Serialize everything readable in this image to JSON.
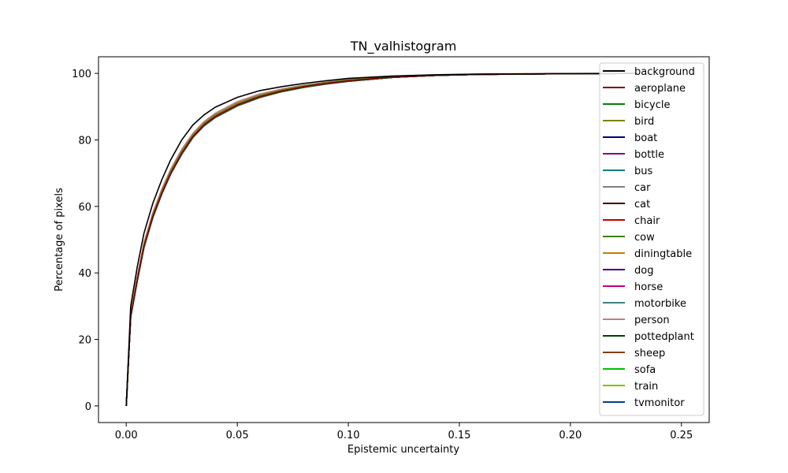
{
  "chart_data": {
    "type": "line",
    "title": "TN_valhistogram",
    "xlabel": "Epistemic uncertainty",
    "ylabel": "Percentage of pixels",
    "xlim": [
      -0.0125,
      0.2625
    ],
    "ylim": [
      -5,
      105
    ],
    "xticks": [
      0.0,
      0.05,
      0.1,
      0.15,
      0.2,
      0.25
    ],
    "xtick_labels": [
      "0.00",
      "0.05",
      "0.10",
      "0.15",
      "0.20",
      "0.25"
    ],
    "yticks": [
      0,
      20,
      40,
      60,
      80,
      100
    ],
    "ytick_labels": [
      "0",
      "20",
      "40",
      "60",
      "80",
      "100"
    ],
    "legend_position": "top-right",
    "x": [
      0.0,
      0.002,
      0.005,
      0.008,
      0.012,
      0.016,
      0.02,
      0.025,
      0.03,
      0.035,
      0.04,
      0.05,
      0.06,
      0.07,
      0.08,
      0.09,
      0.1,
      0.12,
      0.14,
      0.16,
      0.2,
      0.23
    ],
    "series": [
      {
        "name": "background",
        "color": "#000000",
        "values": [
          0,
          30,
          42,
          52,
          61,
          68,
          74,
          80,
          84.5,
          87.5,
          89.8,
          92.8,
          94.8,
          96.0,
          97.0,
          97.8,
          98.5,
          99.2,
          99.6,
          99.8,
          99.95,
          100
        ]
      },
      {
        "name": "aeroplane",
        "color": "#800000",
        "values": [
          0,
          27,
          38,
          48,
          57,
          64,
          70,
          76,
          81,
          84.5,
          87,
          90.5,
          93.0,
          94.7,
          96.0,
          97.0,
          97.8,
          98.9,
          99.4,
          99.7,
          99.9,
          100
        ]
      },
      {
        "name": "bicycle",
        "color": "#008000",
        "values": [
          0,
          26.8,
          37.8,
          47.8,
          56.8,
          63.8,
          69.8,
          75.8,
          80.8,
          84.3,
          86.8,
          90.3,
          92.8,
          94.5,
          95.8,
          96.9,
          97.7,
          98.8,
          99.4,
          99.7,
          99.9,
          100
        ]
      },
      {
        "name": "bird",
        "color": "#808000",
        "values": [
          0,
          27.2,
          38.4,
          48.4,
          57.4,
          64.4,
          70.4,
          76.4,
          81.4,
          84.9,
          87.4,
          90.9,
          93.3,
          95.0,
          96.2,
          97.2,
          98.0,
          99.0,
          99.5,
          99.7,
          99.9,
          100
        ]
      },
      {
        "name": "boat",
        "color": "#000080",
        "values": [
          0,
          26.9,
          37.9,
          47.9,
          56.9,
          63.9,
          69.9,
          75.9,
          80.9,
          84.4,
          86.9,
          90.4,
          92.9,
          94.6,
          95.9,
          96.9,
          97.7,
          98.8,
          99.4,
          99.7,
          99.9,
          100
        ]
      },
      {
        "name": "bottle",
        "color": "#800080",
        "values": [
          0,
          26.7,
          37.7,
          47.7,
          56.7,
          63.7,
          69.7,
          75.7,
          80.7,
          84.2,
          86.7,
          90.2,
          92.7,
          94.5,
          95.8,
          96.8,
          97.6,
          98.8,
          99.4,
          99.7,
          99.9,
          100
        ]
      },
      {
        "name": "bus",
        "color": "#008080",
        "values": [
          0,
          26.9,
          37.9,
          47.9,
          56.9,
          63.9,
          69.9,
          75.9,
          80.9,
          84.4,
          86.9,
          90.4,
          92.9,
          94.6,
          95.9,
          96.9,
          97.7,
          98.8,
          99.4,
          99.7,
          99.9,
          100
        ]
      },
      {
        "name": "car",
        "color": "#808080",
        "values": [
          0,
          27.5,
          38.8,
          48.8,
          57.8,
          64.8,
          70.8,
          76.8,
          81.6,
          85.1,
          87.6,
          91.1,
          93.5,
          95.1,
          96.3,
          97.3,
          98.1,
          99.0,
          99.5,
          99.7,
          99.9,
          100
        ]
      },
      {
        "name": "cat",
        "color": "#400000",
        "values": [
          0,
          27.0,
          38.0,
          48.0,
          57.0,
          64.0,
          70.0,
          76.0,
          81.0,
          84.5,
          87.0,
          90.5,
          93.0,
          94.7,
          96.0,
          97.0,
          97.8,
          98.9,
          99.4,
          99.7,
          99.9,
          100
        ]
      },
      {
        "name": "chair",
        "color": "#c00000",
        "values": [
          0,
          26.8,
          37.8,
          47.8,
          56.8,
          63.8,
          69.8,
          75.8,
          80.8,
          84.3,
          86.8,
          90.3,
          92.8,
          94.5,
          95.8,
          96.9,
          97.7,
          98.8,
          99.4,
          99.7,
          99.9,
          100
        ]
      },
      {
        "name": "cow",
        "color": "#408000",
        "values": [
          0,
          27.0,
          38.0,
          48.0,
          57.0,
          64.0,
          70.0,
          76.0,
          81.0,
          84.5,
          87.0,
          90.5,
          93.0,
          94.7,
          96.0,
          97.0,
          97.8,
          98.9,
          99.4,
          99.7,
          99.9,
          100
        ]
      },
      {
        "name": "diningtable",
        "color": "#c08000",
        "values": [
          0,
          27.1,
          38.2,
          48.2,
          57.2,
          64.2,
          70.2,
          76.2,
          81.2,
          84.7,
          87.2,
          90.7,
          93.1,
          94.8,
          96.1,
          97.1,
          97.9,
          98.9,
          99.5,
          99.7,
          99.9,
          100
        ]
      },
      {
        "name": "dog",
        "color": "#400080",
        "values": [
          0,
          26.9,
          37.9,
          47.9,
          56.9,
          63.9,
          69.9,
          75.9,
          80.9,
          84.4,
          86.9,
          90.4,
          92.9,
          94.6,
          95.9,
          96.9,
          97.7,
          98.8,
          99.4,
          99.7,
          99.9,
          100
        ]
      },
      {
        "name": "horse",
        "color": "#c00080",
        "values": [
          0,
          27.0,
          38.0,
          48.0,
          57.0,
          64.0,
          70.0,
          76.0,
          81.0,
          84.5,
          87.0,
          90.5,
          93.0,
          94.7,
          96.0,
          97.0,
          97.8,
          98.9,
          99.4,
          99.7,
          99.9,
          100
        ]
      },
      {
        "name": "motorbike",
        "color": "#408080",
        "values": [
          0,
          26.8,
          37.8,
          47.8,
          56.8,
          63.8,
          69.8,
          75.8,
          80.8,
          84.3,
          86.8,
          90.3,
          92.8,
          94.5,
          95.8,
          96.9,
          97.7,
          98.8,
          99.4,
          99.7,
          99.9,
          100
        ]
      },
      {
        "name": "person",
        "color": "#c08080",
        "values": [
          0,
          27.8,
          39.2,
          49.2,
          58.2,
          65.2,
          71.2,
          77.2,
          82.0,
          85.5,
          88.0,
          91.5,
          93.8,
          95.3,
          96.5,
          97.4,
          98.2,
          99.1,
          99.5,
          99.8,
          99.9,
          100
        ]
      },
      {
        "name": "pottedplant",
        "color": "#004000",
        "values": [
          0,
          26.7,
          37.7,
          47.7,
          56.7,
          63.7,
          69.7,
          75.7,
          80.7,
          84.2,
          86.7,
          90.2,
          92.7,
          94.5,
          95.8,
          96.8,
          97.6,
          98.8,
          99.4,
          99.7,
          99.9,
          100
        ]
      },
      {
        "name": "sheep",
        "color": "#804000",
        "values": [
          0,
          27.0,
          38.0,
          48.0,
          57.0,
          64.0,
          70.0,
          76.0,
          81.0,
          84.5,
          87.0,
          90.5,
          93.0,
          94.7,
          96.0,
          97.0,
          97.8,
          98.9,
          99.4,
          99.7,
          99.9,
          100
        ]
      },
      {
        "name": "sofa",
        "color": "#00c000",
        "values": [
          0,
          26.9,
          37.9,
          47.9,
          56.9,
          63.9,
          69.9,
          75.9,
          80.9,
          84.4,
          86.9,
          90.4,
          92.9,
          94.6,
          95.9,
          96.9,
          97.7,
          98.8,
          99.4,
          99.7,
          99.9,
          100
        ]
      },
      {
        "name": "train",
        "color": "#80c000",
        "values": [
          0,
          27.0,
          38.0,
          48.0,
          57.0,
          64.0,
          70.0,
          76.0,
          81.0,
          84.5,
          87.0,
          90.5,
          93.0,
          94.7,
          96.0,
          97.0,
          97.8,
          98.9,
          99.4,
          99.7,
          99.9,
          100
        ]
      },
      {
        "name": "tvmonitor",
        "color": "#004080",
        "values": [
          0,
          26.8,
          37.8,
          47.8,
          56.8,
          63.8,
          69.8,
          75.8,
          80.8,
          84.3,
          86.8,
          90.3,
          92.8,
          94.5,
          95.8,
          96.9,
          97.7,
          98.8,
          99.4,
          99.7,
          99.9,
          100
        ]
      }
    ]
  }
}
